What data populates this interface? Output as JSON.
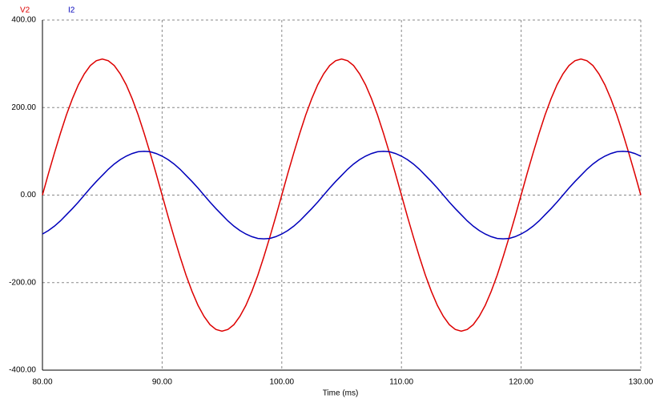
{
  "chart_data": {
    "type": "line",
    "series_labels_position": "top-left",
    "xlabel": "Time (ms)",
    "x": [
      80,
      80.5,
      81,
      81.5,
      82,
      82.5,
      83,
      83.5,
      84,
      84.5,
      85,
      85.5,
      86,
      86.5,
      87,
      87.5,
      88,
      88.5,
      89,
      89.5,
      90,
      90.5,
      91,
      91.5,
      92,
      92.5,
      93,
      93.5,
      94,
      94.5,
      95,
      95.5,
      96,
      96.5,
      97,
      97.5,
      98,
      98.5,
      99,
      99.5,
      100,
      100.5,
      101,
      101.5,
      102,
      102.5,
      103,
      103.5,
      104,
      104.5,
      105,
      105.5,
      106,
      106.5,
      107,
      107.5,
      108,
      108.5,
      109,
      109.5,
      110,
      110.5,
      111,
      111.5,
      112,
      112.5,
      113,
      113.5,
      114,
      114.5,
      115,
      115.5,
      116,
      116.5,
      117,
      117.5,
      118,
      118.5,
      119,
      119.5,
      120,
      120.5,
      121,
      121.5,
      122,
      122.5,
      123,
      123.5,
      124,
      124.5,
      125,
      125.5,
      126,
      126.5,
      127,
      127.5,
      128,
      128.5,
      129,
      129.5,
      130
    ],
    "series": [
      {
        "name": "V2",
        "color": "#dd0000",
        "values": [
          0,
          49,
          96,
          141,
          183,
          220,
          252,
          277,
          296,
          307,
          311,
          307,
          296,
          277,
          252,
          220,
          183,
          141,
          96,
          49,
          0,
          -49,
          -96,
          -141,
          -183,
          -220,
          -252,
          -277,
          -296,
          -307,
          -311,
          -307,
          -296,
          -277,
          -252,
          -220,
          -183,
          -141,
          -96,
          -49,
          0,
          49,
          96,
          141,
          183,
          220,
          252,
          277,
          296,
          307,
          311,
          307,
          296,
          277,
          252,
          220,
          183,
          141,
          96,
          49,
          0,
          -49,
          -96,
          -141,
          -183,
          -220,
          -252,
          -277,
          -296,
          -307,
          -311,
          -307,
          -296,
          -277,
          -252,
          -220,
          -183,
          -141,
          -96,
          -49,
          0,
          49,
          96,
          141,
          183,
          220,
          252,
          277,
          296,
          307,
          311,
          307,
          296,
          277,
          252,
          220,
          183,
          141,
          96,
          49,
          0
        ]
      },
      {
        "name": "I2",
        "color": "#0000bb",
        "values": [
          -89,
          -81,
          -71,
          -59,
          -45,
          -31,
          -16,
          0,
          16,
          31,
          45,
          59,
          71,
          81,
          89,
          95,
          99,
          100,
          99,
          95,
          89,
          81,
          71,
          59,
          45,
          31,
          16,
          0,
          -16,
          -31,
          -45,
          -59,
          -71,
          -81,
          -89,
          -95,
          -99,
          -100,
          -99,
          -95,
          -89,
          -81,
          -71,
          -59,
          -45,
          -31,
          -16,
          0,
          16,
          31,
          45,
          59,
          71,
          81,
          89,
          95,
          99,
          100,
          99,
          95,
          89,
          81,
          71,
          59,
          45,
          31,
          16,
          0,
          -16,
          -31,
          -45,
          -59,
          -71,
          -81,
          -89,
          -95,
          -99,
          -100,
          -99,
          -95,
          -89,
          -81,
          -71,
          -59,
          -45,
          -31,
          -16,
          0,
          16,
          31,
          45,
          59,
          71,
          81,
          89,
          95,
          99,
          100,
          99,
          95,
          89
        ]
      }
    ],
    "xlim": [
      80,
      130
    ],
    "xticks": [
      {
        "value": 80,
        "label": "80.00"
      },
      {
        "value": 90,
        "label": "90.00"
      },
      {
        "value": 100,
        "label": "100.00"
      },
      {
        "value": 110,
        "label": "110.00"
      },
      {
        "value": 120,
        "label": "120.00"
      },
      {
        "value": 130,
        "label": "130.00"
      }
    ],
    "ylim": [
      -400,
      400
    ],
    "yticks": [
      {
        "value": -400,
        "label": "-400.00"
      },
      {
        "value": -200,
        "label": "-200.00"
      },
      {
        "value": 0,
        "label": "0.00"
      },
      {
        "value": 200,
        "label": "200.00"
      },
      {
        "value": 400,
        "label": "400.00"
      }
    ],
    "grid": true
  }
}
